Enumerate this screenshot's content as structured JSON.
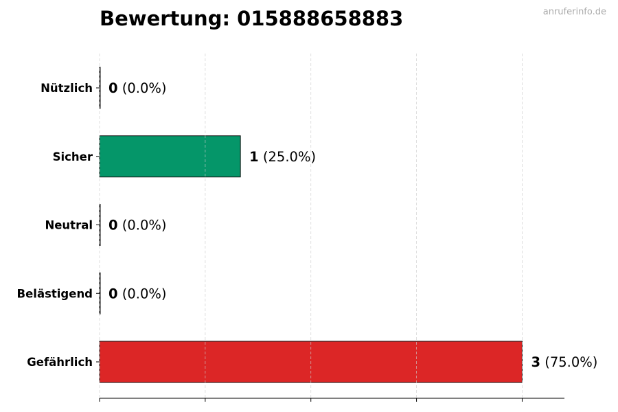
{
  "title": "Bewertung: 015888658883",
  "watermark": "anruferinfo.de",
  "chart_data": {
    "type": "bar",
    "orientation": "horizontal",
    "title": "Bewertung: 015888658883",
    "categories": [
      "Nützlich",
      "Sicher",
      "Neutral",
      "Belästigend",
      "Gefährlich"
    ],
    "values": [
      0,
      1,
      0,
      0,
      3
    ],
    "percent_labels": [
      "(0.0%)",
      "(25.0%)",
      "(0.0%)",
      "(0.0%)",
      "(75.0%)"
    ],
    "colors": [
      "#6b7280",
      "#059669",
      "#6b7280",
      "#6b7280",
      "#dc2626"
    ],
    "xlim": [
      0,
      3.3
    ],
    "x_gridlines": [
      0,
      0.75,
      1.5,
      2.25,
      3
    ],
    "x_tick_labels_shown": false,
    "grid": "vertical dashed",
    "xlabel": "",
    "ylabel": ""
  }
}
